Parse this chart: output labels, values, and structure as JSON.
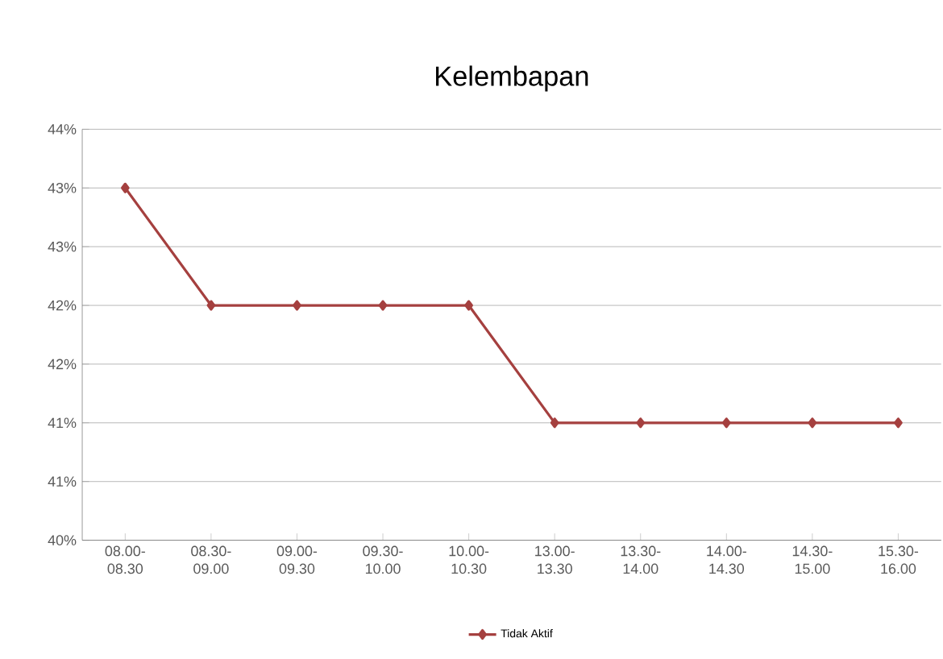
{
  "chart_data": {
    "type": "line",
    "title": "Kelembapan",
    "categories": [
      "08.00-\n08.30",
      "08.30-\n09.00",
      "09.00-\n09.30",
      "09.30-\n10.00",
      "10.00-\n10.30",
      "13.00-\n13.30",
      "13.30-\n14.00",
      "14.00-\n14.30",
      "14.30-\n15.00",
      "15.30-\n16.00"
    ],
    "series": [
      {
        "name": "Tidak Aktif",
        "color": "#a5403f",
        "values": [
          43,
          42,
          42,
          42,
          42,
          41,
          41,
          41,
          41,
          41
        ]
      }
    ],
    "ylim": [
      40,
      43.5
    ],
    "yticks": [
      {
        "value": 40,
        "label": "40%"
      },
      {
        "value": 40.5,
        "label": "41%"
      },
      {
        "value": 41,
        "label": "41%"
      },
      {
        "value": 41.5,
        "label": "42%"
      },
      {
        "value": 42,
        "label": "42%"
      },
      {
        "value": 42.5,
        "label": "43%"
      },
      {
        "value": 43,
        "label": "43%"
      },
      {
        "value": 43.5,
        "label": "44%"
      }
    ],
    "grid": "y",
    "legend": "bottom",
    "marker": "diamond",
    "line_style": "solid"
  }
}
